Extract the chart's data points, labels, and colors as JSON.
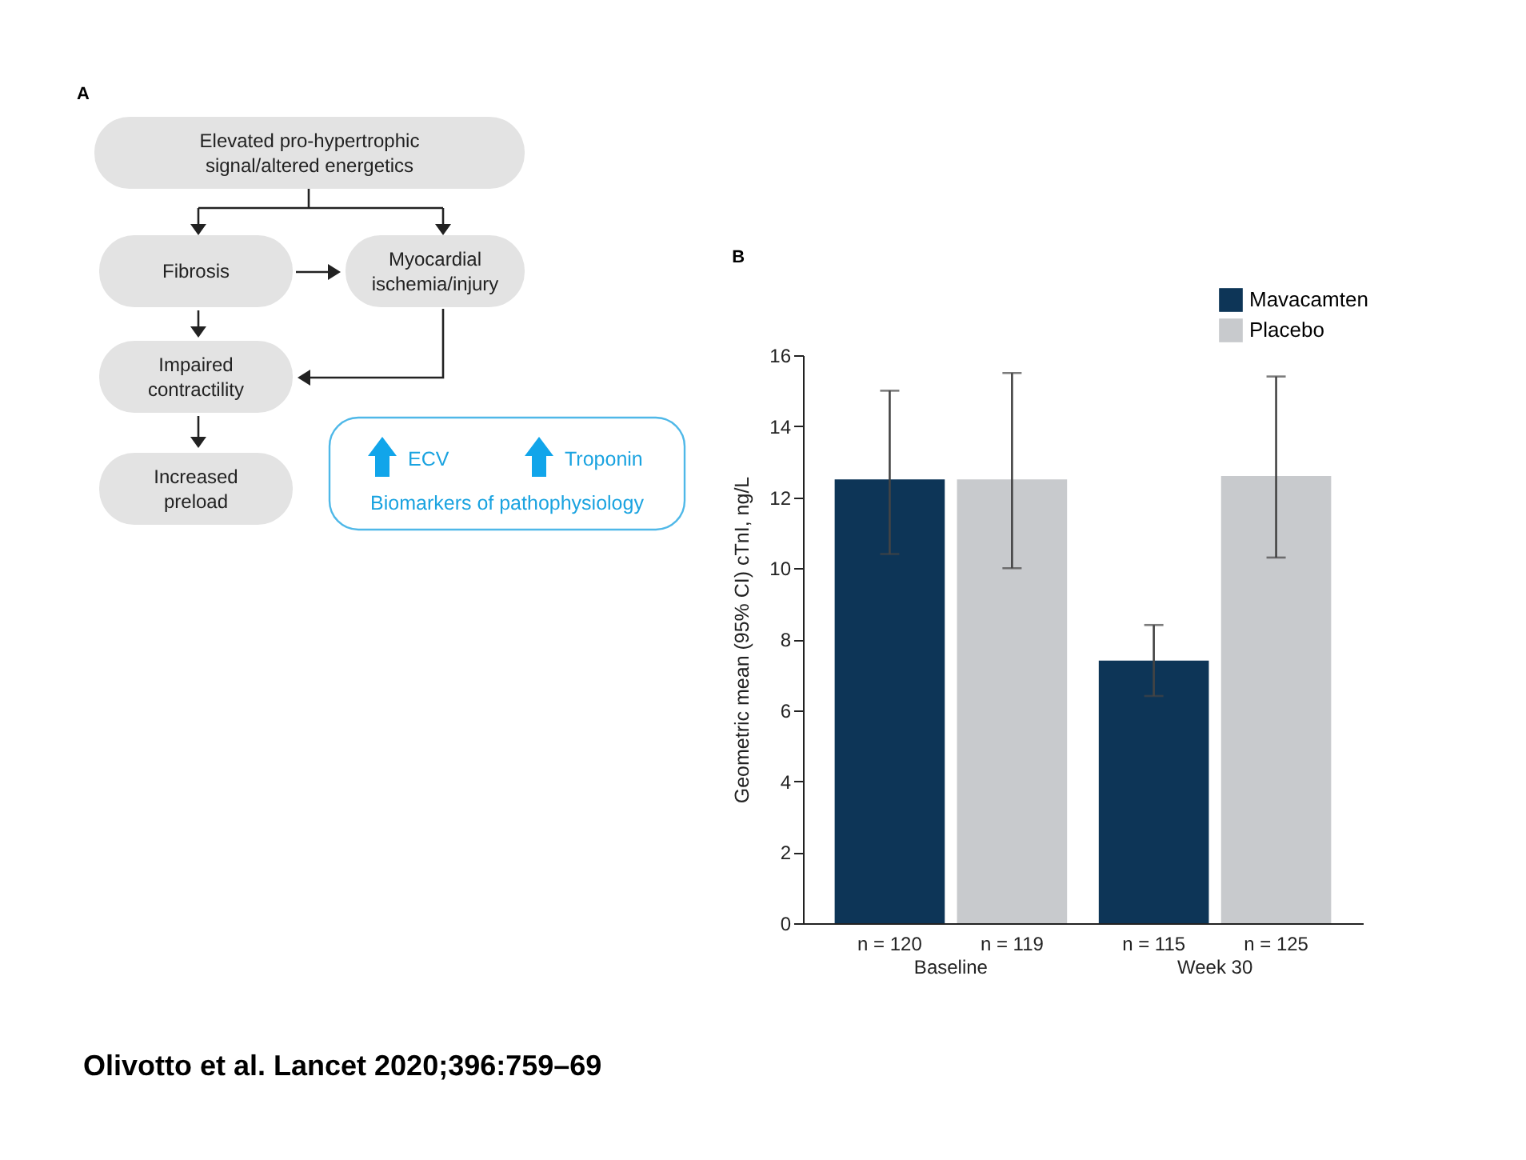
{
  "chart_data": [
    {
      "type": "other",
      "title": "A",
      "annotations": [
        "Elevated pro-hypertrophic\nsignal/altered energetics",
        "Fibrosis",
        "Myocardial\nischemia/injury",
        "Impaired\ncontractility",
        "Increased\npreload",
        "ECV",
        "Troponin",
        "Biomarkers of pathophysiology"
      ]
    },
    {
      "type": "bar",
      "title": "B",
      "ylabel": "Geometric mean (95% CI) cTnI, ng/L",
      "categories": [
        "Baseline",
        "Week 30"
      ],
      "series": [
        {
          "name": "Mavacamten",
          "color": "#0d3557",
          "values": [
            12.5,
            7.4
          ],
          "errors": [
            [
              10.4,
              15.0
            ],
            [
              6.4,
              8.4
            ]
          ]
        },
        {
          "name": "Placebo",
          "color": "#c8cacd",
          "values": [
            12.5,
            12.6
          ],
          "errors": [
            [
              10.0,
              15.5
            ],
            [
              10.3,
              15.4
            ]
          ]
        }
      ],
      "ylim": [
        0,
        16
      ],
      "yticks": [
        0,
        2,
        4,
        6,
        8,
        10,
        12,
        14,
        16
      ],
      "legend": "top right",
      "annotations": [
        "n = 120",
        "n = 119",
        "n = 115",
        "n = 125",
        "Olivotto et al. Lancet 2020;396:759–69"
      ]
    }
  ]
}
